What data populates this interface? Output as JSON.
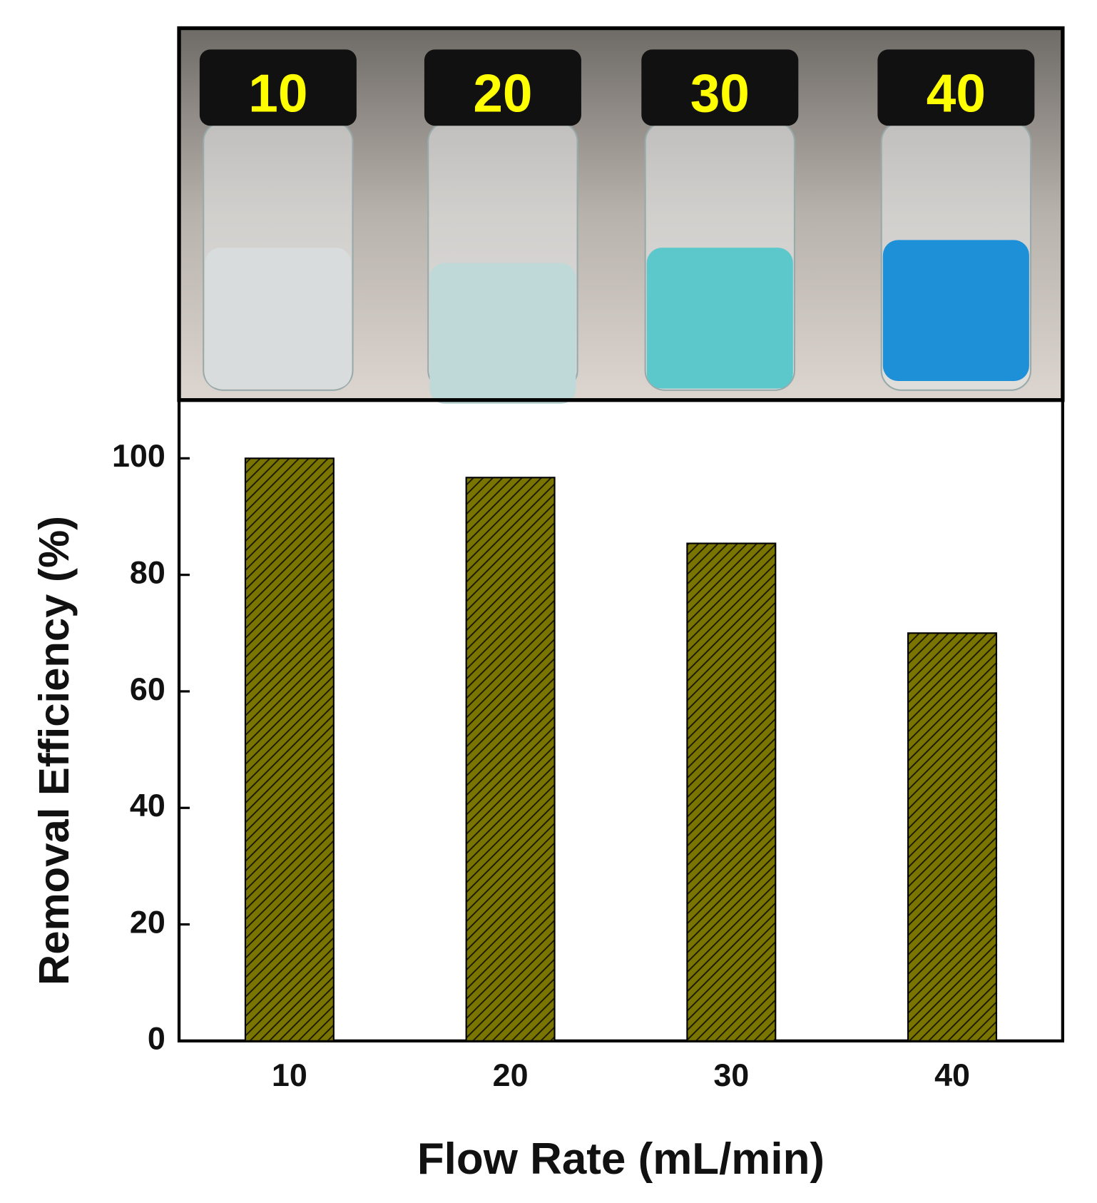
{
  "photo": {
    "labels": [
      "10",
      "20",
      "30",
      "40"
    ]
  },
  "chart_data": {
    "type": "bar",
    "x_label": "Flow Rate (mL/min)",
    "y_label": "Removal Efficiency (%)",
    "categories": [
      "10",
      "20",
      "30",
      "40"
    ],
    "values": [
      100,
      96.7,
      85.4,
      70
    ],
    "color": "#7a7400",
    "ylim": [
      0,
      110
    ],
    "yticks": [
      0,
      20,
      40,
      60,
      80,
      100
    ]
  }
}
